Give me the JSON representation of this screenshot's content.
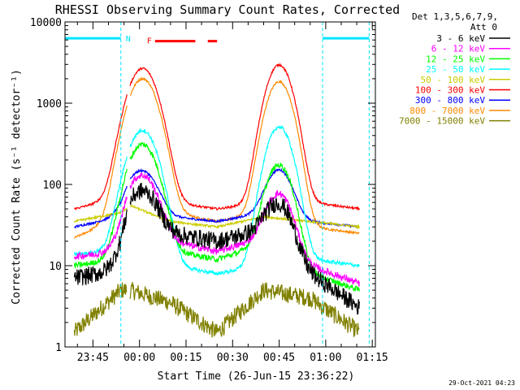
{
  "chart_data": {
    "type": "line",
    "title": "RHESSI Observing Summary Count Rates, Corrected",
    "xlabel": "Start Time (26-Jun-15 23:36:22)",
    "ylabel": "Corrected Count Rate (s⁻¹ detector⁻¹)",
    "yscale": "log",
    "ylim": [
      1,
      10000
    ],
    "xlim_minutes": [
      -24,
      76
    ],
    "y_ticks": [
      {
        "value": 1,
        "label": "1"
      },
      {
        "value": 10,
        "label": "10"
      },
      {
        "value": 100,
        "label": "100"
      },
      {
        "value": 1000,
        "label": "1000"
      },
      {
        "value": 10000,
        "label": "10000"
      }
    ],
    "x_ticks": [
      {
        "value": -15,
        "label": "23:45"
      },
      {
        "value": 0,
        "label": "00:00"
      },
      {
        "value": 15,
        "label": "00:15"
      },
      {
        "value": 30,
        "label": "00:30"
      },
      {
        "value": 45,
        "label": "00:45"
      },
      {
        "value": 60,
        "label": "01:00"
      },
      {
        "value": 75,
        "label": "01:15"
      }
    ],
    "legend": {
      "placement": "top-right, outside plot",
      "header_line1": "Det 1,3,5,6,7,9,",
      "header_line2": "Att 0"
    },
    "annotations": {
      "night_label": "N",
      "flare_label": "F",
      "date_stamp": "29-Oct-2021 04:23"
    },
    "night_intervals": [
      [
        -24,
        -6
      ],
      [
        59,
        74
      ]
    ],
    "flare_intervals": [
      [
        5,
        18
      ],
      [
        22,
        25
      ]
    ],
    "peaks": [
      {
        "center": 1,
        "width": 4
      },
      {
        "center": 45,
        "width": 3.5
      }
    ],
    "series": [
      {
        "name": "3 - 6 keV",
        "color": "#000000",
        "segments": [
          [
            -21,
            -4
          ],
          [
            -3,
            59
          ],
          [
            59,
            71
          ]
        ],
        "baseline": [
          [
            -21,
            7
          ],
          [
            -6,
            9
          ],
          [
            -3,
            30
          ],
          [
            10,
            25
          ],
          [
            25,
            20
          ],
          [
            40,
            28
          ],
          [
            55,
            8
          ],
          [
            71,
            3
          ]
        ],
        "peak1": 55,
        "peak2": 40,
        "noise": 0.25
      },
      {
        "name": "6 - 12 keV",
        "color": "#ff00ff",
        "segments": [
          [
            -21,
            -4
          ],
          [
            -3,
            59
          ],
          [
            59,
            71
          ]
        ],
        "baseline": [
          [
            -21,
            13
          ],
          [
            -6,
            15
          ],
          [
            -3,
            35
          ],
          [
            10,
            20
          ],
          [
            25,
            15
          ],
          [
            40,
            22
          ],
          [
            55,
            10
          ],
          [
            71,
            6
          ]
        ],
        "peak1": 100,
        "peak2": 60,
        "noise": 0.1
      },
      {
        "name": "12 - 25 keV",
        "color": "#00ff00",
        "segments": [
          [
            -21,
            -4
          ],
          [
            -3,
            59
          ],
          [
            59,
            71
          ]
        ],
        "baseline": [
          [
            -21,
            10
          ],
          [
            -6,
            12
          ],
          [
            -3,
            25
          ],
          [
            10,
            15
          ],
          [
            25,
            12
          ],
          [
            40,
            18
          ],
          [
            55,
            8
          ],
          [
            71,
            5
          ]
        ],
        "peak1": 290,
        "peak2": 160,
        "noise": 0.08
      },
      {
        "name": "25 - 50 keV",
        "color": "#00ffff",
        "segments": [
          [
            -21,
            -4
          ],
          [
            -3,
            59
          ],
          [
            59,
            71
          ]
        ],
        "baseline": [
          [
            -21,
            14
          ],
          [
            -6,
            15
          ],
          [
            -3,
            15
          ],
          [
            10,
            10
          ],
          [
            25,
            8
          ],
          [
            40,
            10
          ],
          [
            55,
            12
          ],
          [
            71,
            10
          ]
        ],
        "peak1": 450,
        "peak2": 500,
        "noise": 0.05
      },
      {
        "name": "50 - 100 keV",
        "color": "#cccc00",
        "segments": [
          [
            -21,
            -4
          ],
          [
            -3,
            59
          ],
          [
            59,
            71
          ]
        ],
        "baseline": [
          [
            -21,
            35
          ],
          [
            -6,
            45
          ],
          [
            -3,
            55
          ],
          [
            10,
            35
          ],
          [
            25,
            30
          ],
          [
            40,
            40
          ],
          [
            55,
            35
          ],
          [
            71,
            30
          ]
        ],
        "peak1": 0,
        "peak2": 0,
        "noise": 0.03
      },
      {
        "name": "100 - 300 keV",
        "color": "#ff0000",
        "segments": [
          [
            -21,
            -4
          ],
          [
            -3,
            59
          ],
          [
            59,
            71
          ]
        ],
        "baseline": [
          [
            -21,
            50
          ],
          [
            -6,
            70
          ],
          [
            -3,
            90
          ],
          [
            10,
            60
          ],
          [
            25,
            50
          ],
          [
            40,
            60
          ],
          [
            55,
            60
          ],
          [
            71,
            50
          ]
        ],
        "peak1": 2600,
        "peak2": 2900,
        "noise": 0.03
      },
      {
        "name": "300 - 800 keV",
        "color": "#0000ff",
        "segments": [
          [
            -21,
            -4
          ],
          [
            -3,
            59
          ],
          [
            59,
            71
          ]
        ],
        "baseline": [
          [
            -21,
            30
          ],
          [
            -6,
            40
          ],
          [
            -3,
            60
          ],
          [
            10,
            40
          ],
          [
            25,
            35
          ],
          [
            40,
            45
          ],
          [
            55,
            35
          ],
          [
            71,
            30
          ]
        ],
        "peak1": 95,
        "peak2": 110,
        "noise": 0.03
      },
      {
        "name": "800 - 7000 keV",
        "color": "#ff8800",
        "segments": [
          [
            -21,
            -4
          ],
          [
            -3,
            59
          ],
          [
            59,
            71
          ]
        ],
        "baseline": [
          [
            -21,
            22
          ],
          [
            -6,
            40
          ],
          [
            -3,
            55
          ],
          [
            10,
            45
          ],
          [
            25,
            35
          ],
          [
            40,
            45
          ],
          [
            55,
            30
          ],
          [
            71,
            25
          ]
        ],
        "peak1": 1950,
        "peak2": 1800,
        "noise": 0.03
      },
      {
        "name": "7000 - 15000 keV",
        "color": "#808000",
        "segments": [
          [
            -21,
            -4
          ],
          [
            -3,
            59
          ],
          [
            59,
            71
          ]
        ],
        "baseline": [
          [
            -21,
            1.5
          ],
          [
            -6,
            5
          ],
          [
            -3,
            5
          ],
          [
            10,
            3.5
          ],
          [
            25,
            1.5
          ],
          [
            40,
            5
          ],
          [
            55,
            4
          ],
          [
            71,
            1.5
          ]
        ],
        "peak1": 0,
        "peak2": 0,
        "noise": 0.25
      }
    ]
  }
}
